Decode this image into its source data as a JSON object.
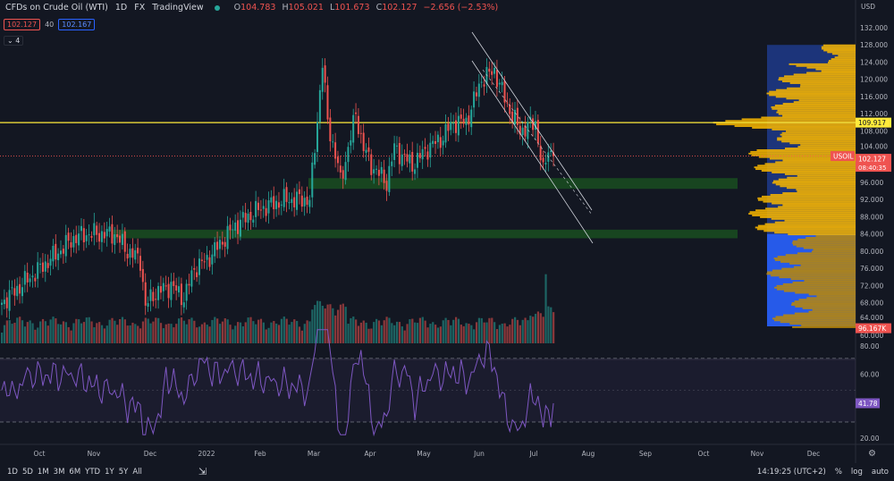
{
  "header": {
    "symbol_title": "CFDs on Crude Oil (WTI)",
    "interval": "1D",
    "market": "FX",
    "source": "TradingView",
    "ohlc": {
      "o_label": "O",
      "o": "104.783",
      "h_label": "H",
      "h": "105.021",
      "l_label": "L",
      "l": "101.673",
      "c_label": "C",
      "c": "102.127",
      "change": "−2.656 (−2.53%)"
    },
    "sell_price": "102.127",
    "spread": "40",
    "buy_price": "102.167",
    "indicator_toggle": "4"
  },
  "price_axis": {
    "currency": "USD",
    "ticks": [
      "132.000",
      "128.000",
      "124.000",
      "120.000",
      "116.000",
      "112.000",
      "108.000",
      "104.000",
      "96.000",
      "92.000",
      "88.000",
      "84.000",
      "80.000",
      "76.000",
      "72.000",
      "68.000",
      "64.000",
      "60.000"
    ],
    "tick_values": [
      132,
      128,
      124,
      120,
      116,
      112,
      108,
      104,
      96,
      92,
      88,
      84,
      80,
      76,
      72,
      68,
      64,
      60
    ],
    "hline_label": "109.917",
    "hline_value": 109.917,
    "symbol_tag": "USOIL",
    "last_price_label": "102.127",
    "last_price": 102.127,
    "countdown": "08:40:35",
    "volume_label": "96.167K"
  },
  "rsi_axis": {
    "ticks": [
      "80.00",
      "60.00",
      "20.00"
    ],
    "tick_values": [
      80,
      60,
      20
    ],
    "value_label": "41.78",
    "value": 41.78
  },
  "time_axis": {
    "labels": [
      "Oct",
      "Nov",
      "Dec",
      "2022",
      "Feb",
      "Mar",
      "Apr",
      "May",
      "Jun",
      "Jul",
      "Aug",
      "Sep",
      "Oct",
      "Nov",
      "Dec"
    ]
  },
  "bottom": {
    "ranges": [
      "1D",
      "5D",
      "1M",
      "3M",
      "6M",
      "YTD",
      "1Y",
      "5Y",
      "All"
    ],
    "clock": "14:19:25 (UTC+2)",
    "percent": "%",
    "log": "log",
    "auto": "auto"
  },
  "colors": {
    "up": "#26a69a",
    "down": "#ef5350",
    "hline": "#ffeb3b",
    "zone": "#1b5e20",
    "profile": "#f5b400",
    "profile_bg_up": "#1e3a8a",
    "profile_bg_down": "#2962ff",
    "rsi": "#7e57c2"
  },
  "chart_data": {
    "type": "candlestick",
    "title": "CFDs on Crude Oil (WTI) 1D",
    "close_anchors_bar_price": [
      [
        0,
        68
      ],
      [
        15,
        76
      ],
      [
        28,
        83
      ],
      [
        33,
        84
      ],
      [
        44,
        84
      ],
      [
        49,
        80
      ],
      [
        54,
        78
      ],
      [
        56,
        67
      ],
      [
        59,
        70
      ],
      [
        66,
        72
      ],
      [
        71,
        69
      ],
      [
        75,
        76
      ],
      [
        80,
        78
      ],
      [
        91,
        86
      ],
      [
        101,
        90
      ],
      [
        111,
        92
      ],
      [
        120,
        92
      ],
      [
        122,
        104
      ],
      [
        125,
        124
      ],
      [
        127,
        110
      ],
      [
        131,
        100
      ],
      [
        132,
        96
      ],
      [
        138,
        112
      ],
      [
        141,
        104
      ],
      [
        144,
        100
      ],
      [
        150,
        96
      ],
      [
        153,
        104
      ],
      [
        160,
        100
      ],
      [
        166,
        104
      ],
      [
        171,
        106
      ],
      [
        176,
        110
      ],
      [
        181,
        110
      ],
      [
        187,
        120
      ],
      [
        192,
        122
      ],
      [
        197,
        114
      ],
      [
        202,
        108
      ],
      [
        208,
        110
      ],
      [
        211,
        98
      ],
      [
        213,
        104
      ],
      [
        215,
        102.127
      ]
    ],
    "support_zones": [
      [
        94.5,
        97
      ],
      [
        83,
        85
      ]
    ],
    "resistance_line": 109.917,
    "ylim": [
      60,
      132
    ],
    "rsi_ylim": [
      10,
      90
    ],
    "rsi_bands": [
      30,
      70
    ],
    "grid": false
  }
}
